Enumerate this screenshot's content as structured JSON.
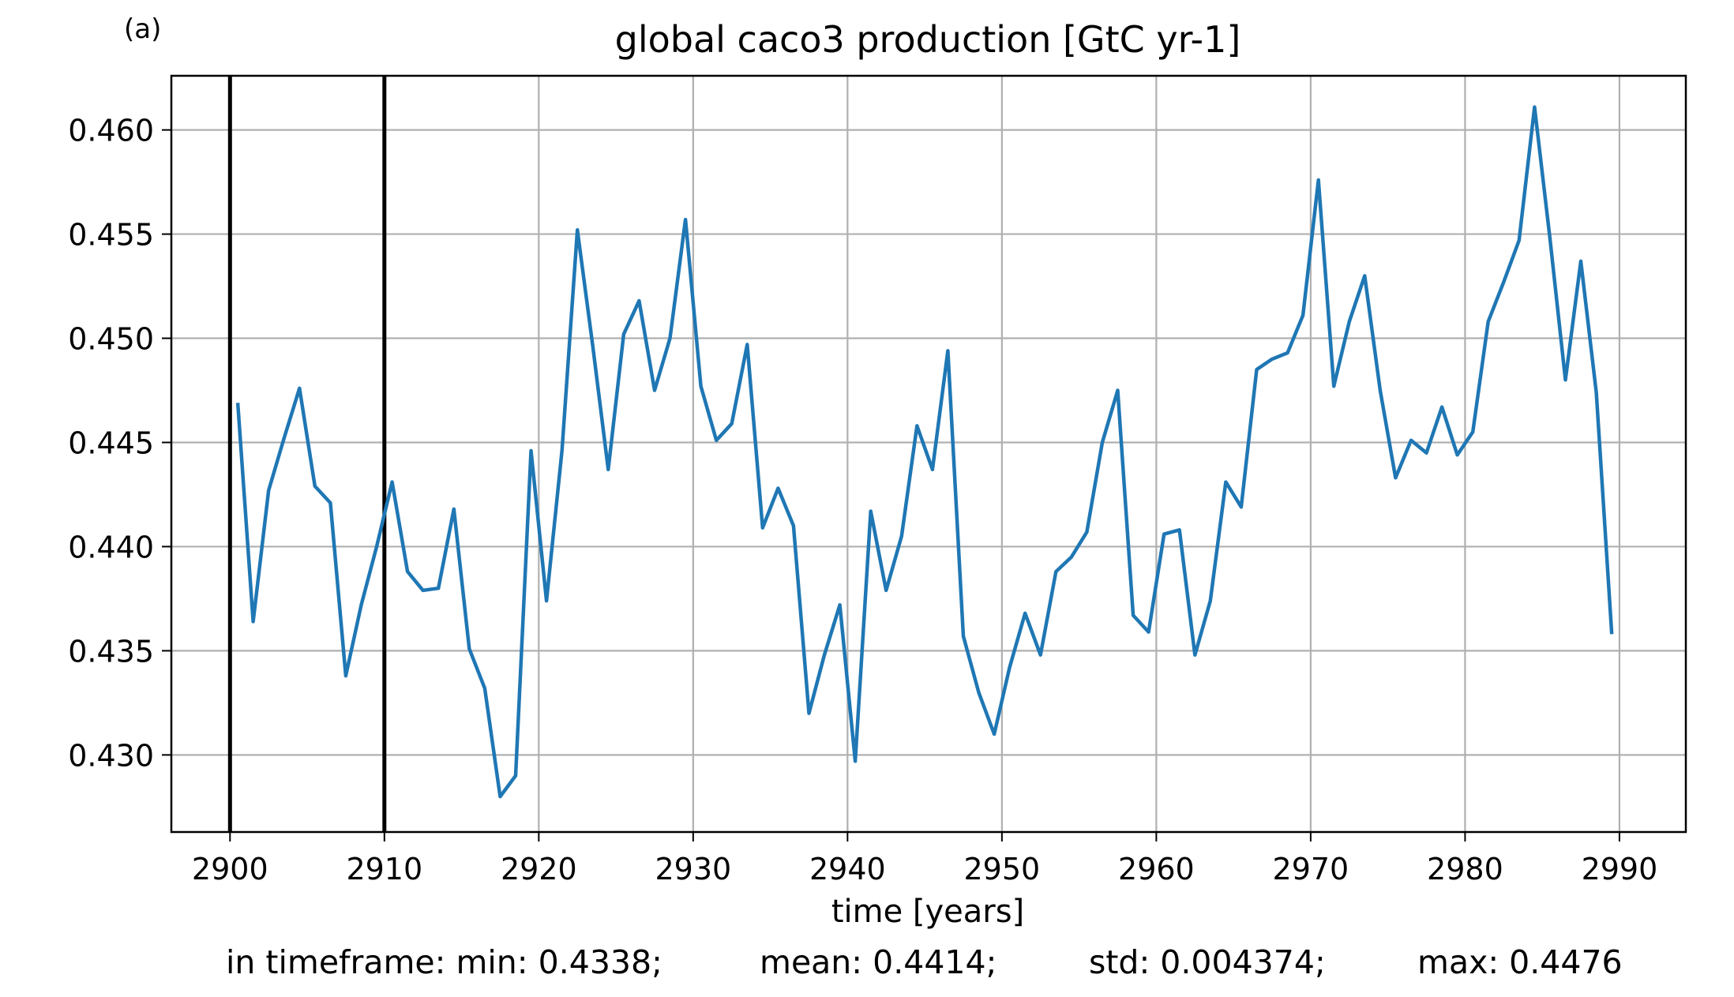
{
  "chart_data": {
    "type": "line",
    "panel_label": "(a)",
    "title": "global caco3 production [GtC yr-1]",
    "xlabel": "time [years]",
    "ylabel": "",
    "xlim": [
      2896.2,
      2994.3
    ],
    "ylim": [
      0.4263,
      0.4626
    ],
    "x_ticks": [
      2900,
      2910,
      2920,
      2930,
      2940,
      2950,
      2960,
      2970,
      2980,
      2990
    ],
    "y_ticks": [
      0.43,
      0.435,
      0.44,
      0.445,
      0.45,
      0.455,
      0.46
    ],
    "y_tick_labels": [
      "0.430",
      "0.435",
      "0.440",
      "0.445",
      "0.450",
      "0.455",
      "0.460"
    ],
    "grid": true,
    "line_color": "#1f77b4",
    "vlines": [
      2900,
      2910
    ],
    "vline_color": "#000000",
    "x": [
      2900.5,
      2901.5,
      2902.5,
      2903.5,
      2904.5,
      2905.5,
      2906.5,
      2907.5,
      2908.5,
      2909.5,
      2910.5,
      2911.5,
      2912.5,
      2913.5,
      2914.5,
      2915.5,
      2916.5,
      2917.5,
      2918.5,
      2919.5,
      2920.5,
      2921.5,
      2922.5,
      2923.5,
      2924.5,
      2925.5,
      2926.5,
      2927.5,
      2928.5,
      2929.5,
      2930.5,
      2931.5,
      2932.5,
      2933.5,
      2934.5,
      2935.5,
      2936.5,
      2937.5,
      2938.5,
      2939.5,
      2940.5,
      2941.5,
      2942.5,
      2943.5,
      2944.5,
      2945.5,
      2946.5,
      2947.5,
      2948.5,
      2949.5,
      2950.5,
      2951.5,
      2952.5,
      2953.5,
      2954.5,
      2955.5,
      2956.5,
      2957.5,
      2958.5,
      2959.5,
      2960.5,
      2961.5,
      2962.5,
      2963.5,
      2964.5,
      2965.5,
      2966.5,
      2967.5,
      2968.5,
      2969.5,
      2970.5,
      2971.5,
      2972.5,
      2973.5,
      2974.5,
      2975.5,
      2976.5,
      2977.5,
      2978.5,
      2979.5,
      2980.5,
      2981.5,
      2982.5,
      2983.5,
      2984.5,
      2985.5,
      2986.5,
      2987.5,
      2988.5,
      2989.5
    ],
    "series": [
      {
        "values": [
          0.4469,
          0.4364,
          0.4427,
          0.4452,
          0.4476,
          0.4429,
          0.4421,
          0.4338,
          0.4372,
          0.44,
          0.4431,
          0.4388,
          0.4379,
          0.438,
          0.4418,
          0.4351,
          0.4332,
          0.428,
          0.429,
          0.4446,
          0.4374,
          0.4446,
          0.4552,
          0.4496,
          0.4437,
          0.4502,
          0.4518,
          0.4475,
          0.45,
          0.4557,
          0.4477,
          0.4451,
          0.4459,
          0.4497,
          0.4409,
          0.4428,
          0.441,
          0.432,
          0.4348,
          0.4372,
          0.4297,
          0.4417,
          0.4379,
          0.4405,
          0.4458,
          0.4437,
          0.4494,
          0.4357,
          0.433,
          0.431,
          0.4342,
          0.4368,
          0.4348,
          0.4388,
          0.4395,
          0.4407,
          0.445,
          0.4475,
          0.4367,
          0.4359,
          0.4406,
          0.4408,
          0.4348,
          0.4374,
          0.4431,
          0.4419,
          0.4485,
          0.449,
          0.4493,
          0.4511,
          0.4576,
          0.4477,
          0.4508,
          0.453,
          0.4475,
          0.4433,
          0.4451,
          0.4445,
          0.4467,
          0.4444,
          0.4455,
          0.4508,
          0.4527,
          0.4547,
          0.4611,
          0.4548,
          0.448,
          0.4537,
          0.4474,
          0.4358
        ]
      }
    ]
  },
  "stats": {
    "min": "in timeframe: min: 0.4338;",
    "mean": "mean: 0.4414;",
    "std": "std: 0.004374;",
    "max": "max: 0.4476"
  }
}
